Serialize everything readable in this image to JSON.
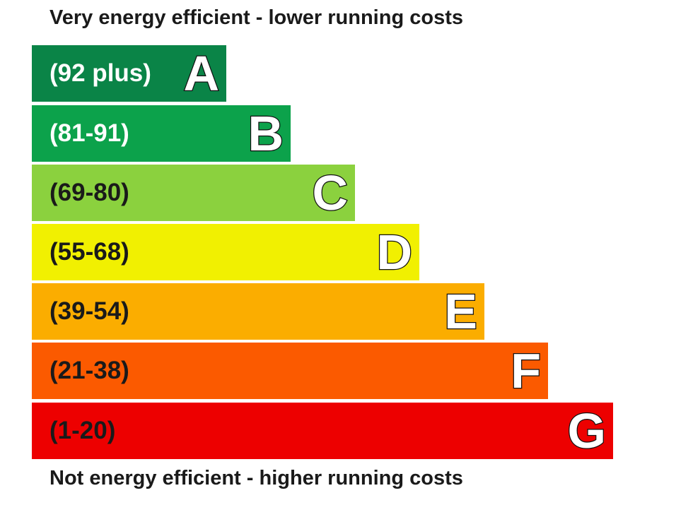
{
  "top_caption": "Very energy efficient - lower running costs",
  "bottom_caption": "Not energy efficient - higher running costs",
  "bands": [
    {
      "letter": "A",
      "range": "(92 plus)",
      "color": "#0a8447",
      "text_color": "#ffffff"
    },
    {
      "letter": "B",
      "range": "(81-91)",
      "color": "#0ca24b",
      "text_color": "#ffffff"
    },
    {
      "letter": "C",
      "range": "(69-80)",
      "color": "#8bd13e",
      "text_color": "#1a1a1a"
    },
    {
      "letter": "D",
      "range": "(55-68)",
      "color": "#f1f001",
      "text_color": "#1a1a1a"
    },
    {
      "letter": "E",
      "range": "(39-54)",
      "color": "#fbad00",
      "text_color": "#1a1a1a"
    },
    {
      "letter": "F",
      "range": "(21-38)",
      "color": "#fb5a00",
      "text_color": "#1a1a1a"
    },
    {
      "letter": "G",
      "range": "(1-20)",
      "color": "#ed0000",
      "text_color": "#1a1a1a"
    }
  ]
}
